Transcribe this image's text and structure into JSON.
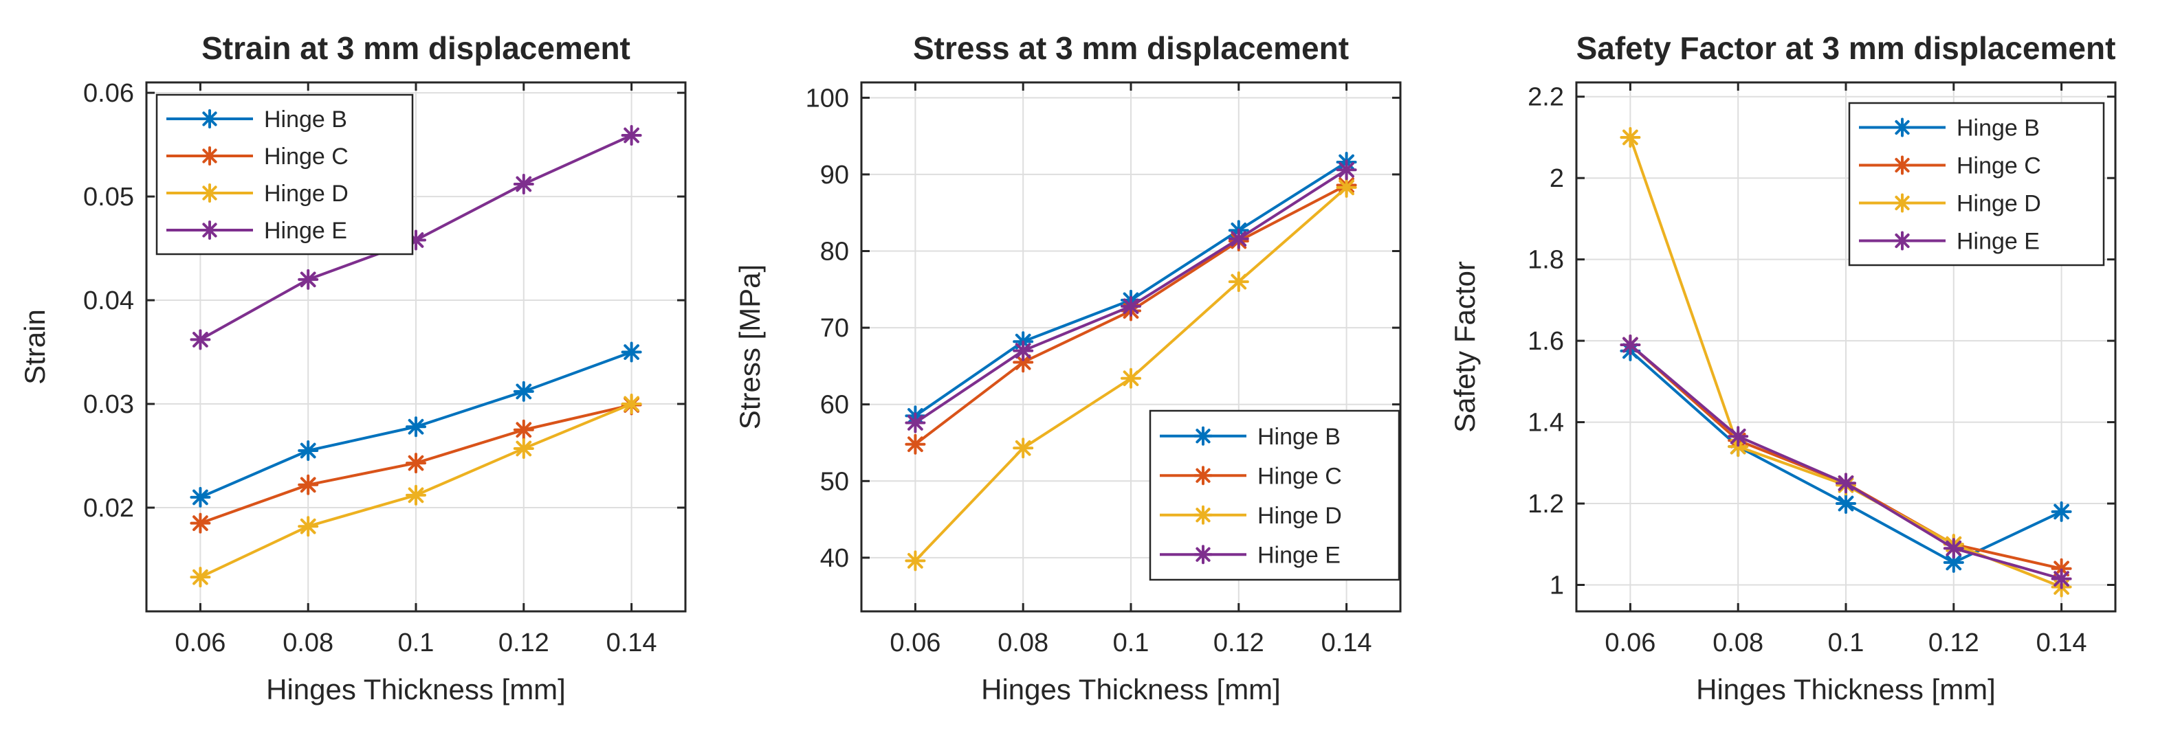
{
  "chart_data": [
    {
      "type": "line",
      "title": "Strain at 3 mm displacement",
      "xlabel": "Hinges Thickness [mm]",
      "ylabel": "Strain",
      "x": [
        0.06,
        0.08,
        0.1,
        0.12,
        0.14
      ],
      "x_tick_labels": [
        "0.06",
        "0.08",
        "0.1",
        "0.12",
        "0.14"
      ],
      "xlim": [
        0.05,
        0.15
      ],
      "ylim": [
        0.01,
        0.061
      ],
      "y_ticks": [
        0.02,
        0.03,
        0.04,
        0.05,
        0.06
      ],
      "y_tick_labels": [
        "0.02",
        "0.03",
        "0.04",
        "0.05",
        "0.06"
      ],
      "grid": true,
      "legend_position": "top-left",
      "series": [
        {
          "name": "Hinge B",
          "color": "#0072BD",
          "values": [
            0.021,
            0.0255,
            0.0278,
            0.0312,
            0.035
          ]
        },
        {
          "name": "Hinge C",
          "color": "#D95319",
          "values": [
            0.0185,
            0.0222,
            0.0243,
            0.0275,
            0.0299
          ]
        },
        {
          "name": "Hinge D",
          "color": "#EDB120",
          "values": [
            0.0133,
            0.0182,
            0.0212,
            0.0257,
            0.03
          ]
        },
        {
          "name": "Hinge E",
          "color": "#7E2F8E",
          "values": [
            0.0362,
            0.042,
            0.0458,
            0.0512,
            0.0559
          ]
        }
      ]
    },
    {
      "type": "line",
      "title": "Stress at 3 mm displacement",
      "xlabel": "Hinges Thickness [mm]",
      "ylabel": "Stress [MPa]",
      "x": [
        0.06,
        0.08,
        0.1,
        0.12,
        0.14
      ],
      "x_tick_labels": [
        "0.06",
        "0.08",
        "0.1",
        "0.12",
        "0.14"
      ],
      "xlim": [
        0.05,
        0.15
      ],
      "ylim": [
        33,
        102
      ],
      "y_ticks": [
        40,
        50,
        60,
        70,
        80,
        90,
        100
      ],
      "y_tick_labels": [
        "40",
        "50",
        "60",
        "70",
        "80",
        "90",
        "100"
      ],
      "grid": true,
      "legend_position": "bottom-right",
      "series": [
        {
          "name": "Hinge B",
          "color": "#0072BD",
          "values": [
            58.5,
            68.2,
            73.6,
            82.7,
            91.6
          ]
        },
        {
          "name": "Hinge C",
          "color": "#D95319",
          "values": [
            54.8,
            65.5,
            72.2,
            81.3,
            88.6
          ]
        },
        {
          "name": "Hinge D",
          "color": "#EDB120",
          "values": [
            39.6,
            54.3,
            63.4,
            76.0,
            88.3
          ]
        },
        {
          "name": "Hinge E",
          "color": "#7E2F8E",
          "values": [
            57.6,
            67.0,
            72.8,
            81.6,
            90.6
          ]
        }
      ]
    },
    {
      "type": "line",
      "title": "Safety Factor at 3 mm displacement",
      "xlabel": "Hinges Thickness [mm]",
      "ylabel": "Safety Factor",
      "x": [
        0.06,
        0.08,
        0.1,
        0.12,
        0.14
      ],
      "x_tick_labels": [
        "0.06",
        "0.08",
        "0.1",
        "0.12",
        "0.14"
      ],
      "xlim": [
        0.05,
        0.15
      ],
      "ylim": [
        0.935,
        2.235
      ],
      "y_ticks": [
        1,
        1.2,
        1.4,
        1.6,
        1.8,
        2,
        2.2
      ],
      "y_tick_labels": [
        "1",
        "1.2",
        "1.4",
        "1.6",
        "1.8",
        "2",
        "2.2"
      ],
      "grid": true,
      "legend_position": "top-right",
      "series": [
        {
          "name": "Hinge B",
          "color": "#0072BD",
          "values": [
            1.575,
            1.34,
            1.2,
            1.055,
            1.18
          ]
        },
        {
          "name": "Hinge C",
          "color": "#D95319",
          "values": [
            1.59,
            1.355,
            1.25,
            1.1,
            1.04
          ]
        },
        {
          "name": "Hinge D",
          "color": "#EDB120",
          "values": [
            2.1,
            1.34,
            1.245,
            1.1,
            0.995
          ]
        },
        {
          "name": "Hinge E",
          "color": "#7E2F8E",
          "values": [
            1.59,
            1.365,
            1.25,
            1.09,
            1.015
          ]
        }
      ]
    }
  ]
}
